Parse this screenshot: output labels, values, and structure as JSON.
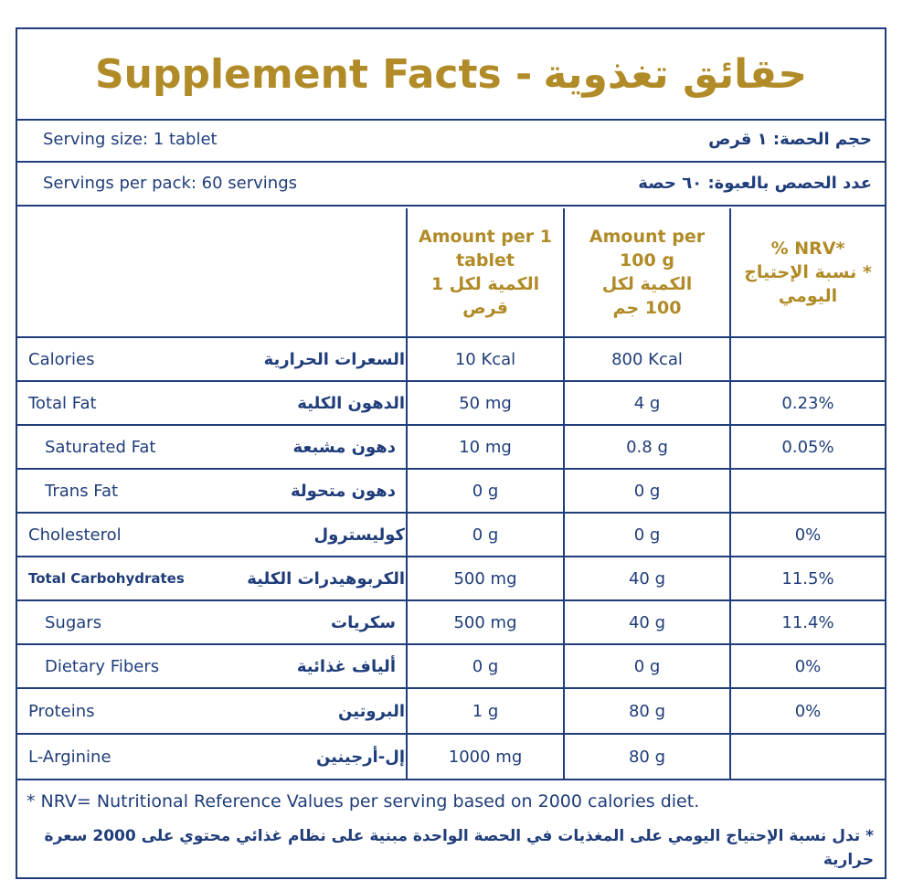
{
  "title": {
    "english": "Supplement Facts -",
    "arabic": "حقائق تغذوية"
  },
  "serving_size": {
    "english": "Serving size: 1 tablet",
    "arabic": "حجم الحصة: ١ قرص"
  },
  "servings_per_pack": {
    "english": "Servings per pack: 60 servings",
    "arabic": "عدد الحصص بالعبوة: ٦٠ حصة"
  },
  "headers": {
    "per_tablet": {
      "english": "Amount per 1 tablet",
      "arabic": "الكمية لكل 1 قرص"
    },
    "per_100g": {
      "english": "Amount per 100 g",
      "arabic": "الكمية لكل 100 جم"
    },
    "nrv": {
      "english": "% NRV*",
      "arabic": "* نسبة الإحتياج اليومي"
    }
  },
  "rows": [
    {
      "english": "Calories",
      "arabic": "السعرات الحرارية",
      "per_tablet": "10 Kcal",
      "per_100g": "800 Kcal",
      "nrv": ""
    },
    {
      "english": "Total Fat",
      "arabic": "الدهون الكلية",
      "per_tablet": "50 mg",
      "per_100g": "4 g",
      "nrv": "0.23%"
    },
    {
      "english": "Saturated Fat",
      "arabic": "دهون مشبعة",
      "per_tablet": "10 mg",
      "per_100g": "0.8 g",
      "nrv": "0.05%"
    },
    {
      "english": "Trans Fat",
      "arabic": "دهون متحولة",
      "per_tablet": "0 g",
      "per_100g": "0 g",
      "nrv": ""
    },
    {
      "english": "Cholesterol",
      "arabic": "كوليسترول",
      "per_tablet": "0 g",
      "per_100g": "0 g",
      "nrv": "0%"
    },
    {
      "english": "Total Carbohydrates",
      "arabic": "الكربوهيدرات الكلية",
      "per_tablet": "500 mg",
      "per_100g": "40 g",
      "nrv": "11.5%"
    },
    {
      "english": "Sugars",
      "arabic": "سكريات",
      "per_tablet": "500 mg",
      "per_100g": "40 g",
      "nrv": "11.4%"
    },
    {
      "english": "Dietary Fibers",
      "arabic": "ألياف غذائية",
      "per_tablet": "0 g",
      "per_100g": "0 g",
      "nrv": "0%"
    },
    {
      "english": "Proteins",
      "arabic": "البروتين",
      "per_tablet": "1 g",
      "per_100g": "80 g",
      "nrv": "0%"
    },
    {
      "english": "L-Arginine",
      "arabic": "إل-أرجينين",
      "per_tablet": "1000 mg",
      "per_100g": "80 g",
      "nrv": ""
    }
  ],
  "footnote": {
    "english": "* NRV= Nutritional Reference Values per serving based on 2000 calories diet.",
    "arabic": "* تدل نسبة الإحتياج اليومي على المغذيات في الحصة الواحدة مبنية على نظام غذائي محتوي على 2000 سعرة حرارية"
  },
  "colors": {
    "border": "#1f3d7a",
    "text": "#1f3d7a",
    "accent": "#b08b27"
  }
}
